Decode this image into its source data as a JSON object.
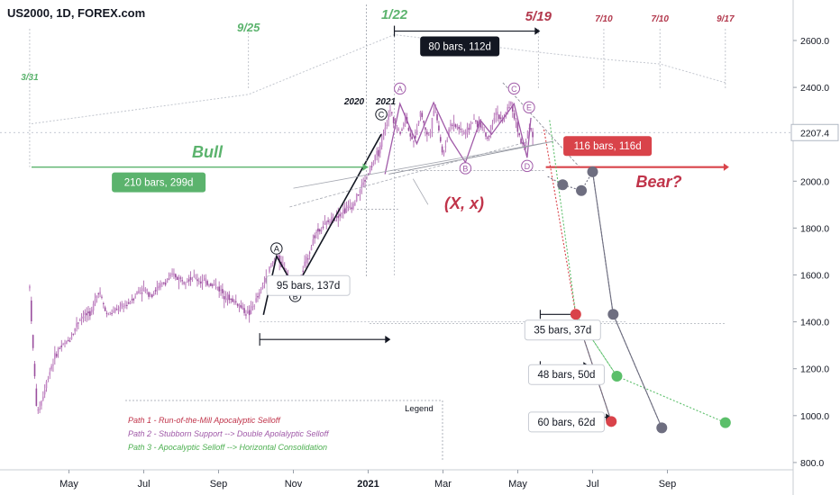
{
  "chart_data": {
    "type": "candlestick",
    "symbol_title": "US2000, 1D, FOREX.com",
    "price_label": "2207.4",
    "price_value": 2207.4,
    "ylim": [
      780,
      2720
    ],
    "y_ticks": [
      {
        "value": 800,
        "label": "800.0"
      },
      {
        "value": 1000,
        "label": "1000.0"
      },
      {
        "value": 1200,
        "label": "1200.0"
      },
      {
        "value": 1400,
        "label": "1400.0"
      },
      {
        "value": 1600,
        "label": "1600.0"
      },
      {
        "value": 1800,
        "label": "1800.0"
      },
      {
        "value": 2000,
        "label": "2000.0"
      },
      {
        "value": 2200,
        "label": "2200.0"
      },
      {
        "value": 2400,
        "label": "2400.0"
      },
      {
        "value": 2600,
        "label": "2600.0"
      }
    ],
    "x_ticks": [
      {
        "label": "May",
        "month": 4.0,
        "bold": false
      },
      {
        "label": "Jul",
        "month": 6.0,
        "bold": false
      },
      {
        "label": "Sep",
        "month": 8.0,
        "bold": false
      },
      {
        "label": "Nov",
        "month": 10.0,
        "bold": false
      },
      {
        "label": "2021",
        "month": 12.0,
        "bold": true
      },
      {
        "label": "Mar",
        "month": 14.0,
        "bold": false
      },
      {
        "label": "May",
        "month": 16.0,
        "bold": false
      },
      {
        "label": "Jul",
        "month": 18.0,
        "bold": false
      },
      {
        "label": "Sep",
        "month": 20.0,
        "bold": false
      }
    ],
    "price_path": [
      [
        2.95,
        1550
      ],
      [
        3.05,
        1250
      ],
      [
        3.15,
        1000
      ],
      [
        3.3,
        1080
      ],
      [
        3.5,
        1200
      ],
      [
        3.7,
        1280
      ],
      [
        4.0,
        1320
      ],
      [
        4.3,
        1420
      ],
      [
        4.6,
        1440
      ],
      [
        4.8,
        1540
      ],
      [
        5.0,
        1430
      ],
      [
        5.3,
        1450
      ],
      [
        5.6,
        1480
      ],
      [
        5.9,
        1540
      ],
      [
        6.2,
        1520
      ],
      [
        6.5,
        1560
      ],
      [
        6.8,
        1600
      ],
      [
        7.0,
        1580
      ],
      [
        7.3,
        1590
      ],
      [
        7.6,
        1570
      ],
      [
        7.9,
        1560
      ],
      [
        8.2,
        1510
      ],
      [
        8.5,
        1480
      ],
      [
        8.8,
        1430
      ],
      [
        9.1,
        1520
      ],
      [
        9.35,
        1620
      ],
      [
        9.55,
        1680
      ],
      [
        9.8,
        1620
      ],
      [
        9.95,
        1560
      ],
      [
        10.1,
        1540
      ],
      [
        10.3,
        1640
      ],
      [
        10.6,
        1780
      ],
      [
        10.9,
        1820
      ],
      [
        11.2,
        1860
      ],
      [
        11.4,
        1880
      ],
      [
        11.6,
        1900
      ],
      [
        11.9,
        2000
      ],
      [
        12.05,
        2050
      ],
      [
        12.2,
        2100
      ],
      [
        12.35,
        2150
      ],
      [
        12.5,
        2250
      ],
      [
        12.6,
        2310
      ],
      [
        12.7,
        2250
      ],
      [
        12.85,
        2200
      ],
      [
        13.0,
        2280
      ],
      [
        13.2,
        2150
      ],
      [
        13.4,
        2300
      ],
      [
        13.6,
        2180
      ],
      [
        13.8,
        2320
      ],
      [
        14.0,
        2100
      ],
      [
        14.2,
        2250
      ],
      [
        14.4,
        2230
      ],
      [
        14.6,
        2200
      ],
      [
        14.8,
        2260
      ],
      [
        15.0,
        2240
      ],
      [
        15.2,
        2180
      ],
      [
        15.4,
        2300
      ],
      [
        15.6,
        2250
      ],
      [
        15.8,
        2340
      ],
      [
        16.0,
        2220
      ],
      [
        16.1,
        2160
      ],
      [
        16.2,
        2140
      ],
      [
        16.3,
        2250
      ],
      [
        16.4,
        2200
      ]
    ],
    "timeline_dates": [
      {
        "label": "3/31",
        "month": 2.95,
        "color": "#5bb36d",
        "size": 10
      },
      {
        "label": "9/25",
        "month": 8.8,
        "color": "#5bb36d",
        "size": 13
      },
      {
        "label": "1/22",
        "month": 12.7,
        "color": "#5bb36d",
        "size": 15
      },
      {
        "label": "5/19",
        "month": 16.55,
        "color": "#b33a4e",
        "size": 15
      },
      {
        "label": "7/10",
        "month": 18.3,
        "color": "#b33a4e",
        "size": 10
      },
      {
        "label": "7/10",
        "month": 19.8,
        "color": "#b33a4e",
        "size": 10
      },
      {
        "label": "9/17",
        "month": 21.55,
        "color": "#b33a4e",
        "size": 10
      }
    ],
    "timeline_points": [
      [
        3.0,
        2245
      ],
      [
        8.8,
        2370
      ],
      [
        12.7,
        2625
      ],
      [
        16.55,
        2550
      ],
      [
        18.3,
        2520
      ],
      [
        19.8,
        2500
      ],
      [
        21.55,
        2420
      ]
    ],
    "measure_labels": [
      {
        "text": "80 bars, 112d",
        "month": 14.45,
        "price": 2575,
        "w": 88,
        "style": "dark"
      },
      {
        "text": "210 bars, 299d",
        "month": 6.4,
        "price": 1995,
        "w": 104,
        "style": "green"
      },
      {
        "text": "116 bars, 116d",
        "month": 18.4,
        "price": 2150,
        "w": 98,
        "style": "red"
      },
      {
        "text": "95 bars, 137d",
        "month": 10.4,
        "price": 1555,
        "w": 92,
        "style": "light"
      },
      {
        "text": "35 bars, 37d",
        "month": 17.2,
        "price": 1365,
        "w": 84,
        "style": "light"
      },
      {
        "text": "48 bars, 50d",
        "month": 17.3,
        "price": 1175,
        "w": 84,
        "style": "light"
      },
      {
        "text": "60 bars, 62d",
        "month": 17.3,
        "price": 973,
        "w": 84,
        "style": "light"
      }
    ],
    "wave_labels": [
      {
        "text": "A",
        "month": 9.55,
        "price": 1713
      },
      {
        "text": "B",
        "month": 10.05,
        "price": 1510
      },
      {
        "text": "C",
        "month": 12.35,
        "price": 2285
      },
      {
        "text": "A",
        "month": 12.85,
        "price": 2395
      },
      {
        "text": "B",
        "month": 14.6,
        "price": 2055
      },
      {
        "text": "C",
        "month": 15.9,
        "price": 2395
      },
      {
        "text": "D",
        "month": 16.25,
        "price": 2065
      },
      {
        "text": "E",
        "month": 16.3,
        "price": 2315
      }
    ],
    "annotations": {
      "bull": "Bull",
      "bear": "Bear?",
      "xx": "(X, x)",
      "year_2020": "2020",
      "year_2021": "2021"
    },
    "legend": {
      "title": "Legend",
      "items": [
        {
          "text": "Path 1 - Run-of-the-Mill Apocalyptic Selloff",
          "color": "#c0344a"
        },
        {
          "text": "Path 2 - Stubborn Support --> Double Apolalyptic Selloff",
          "color": "#a05aa8"
        },
        {
          "text": "Path 3 - Apocalyptic Selloff --> Horizontal Consolidation",
          "color": "#4caf50"
        }
      ]
    },
    "path1": [
      [
        16.7,
        2220
      ],
      [
        17.55,
        1432
      ],
      [
        18.5,
        975
      ]
    ],
    "path2": [
      [
        16.8,
        2020
      ],
      [
        17.2,
        1985
      ],
      [
        17.7,
        1960
      ],
      [
        18.0,
        2040
      ],
      [
        18.55,
        1432
      ],
      [
        19.85,
        948
      ]
    ],
    "path3": [
      [
        16.85,
        2260
      ],
      [
        17.55,
        1432
      ],
      [
        18.65,
        1168
      ],
      [
        21.55,
        970
      ]
    ],
    "dots": [
      {
        "month": 17.2,
        "price": 1985,
        "color": "#6e6e80"
      },
      {
        "month": 17.7,
        "price": 1960,
        "color": "#6e6e80"
      },
      {
        "month": 18.0,
        "price": 2040,
        "color": "#6e6e80"
      },
      {
        "month": 18.55,
        "price": 1432,
        "color": "#6e6e80"
      },
      {
        "month": 19.85,
        "price": 948,
        "color": "#6e6e80"
      },
      {
        "month": 17.55,
        "price": 1432,
        "color": "#d9434a"
      },
      {
        "month": 18.5,
        "price": 975,
        "color": "#d9434a"
      },
      {
        "month": 18.65,
        "price": 1168,
        "color": "#5bbf6a"
      },
      {
        "month": 21.55,
        "price": 970,
        "color": "#5bbf6a"
      }
    ]
  }
}
